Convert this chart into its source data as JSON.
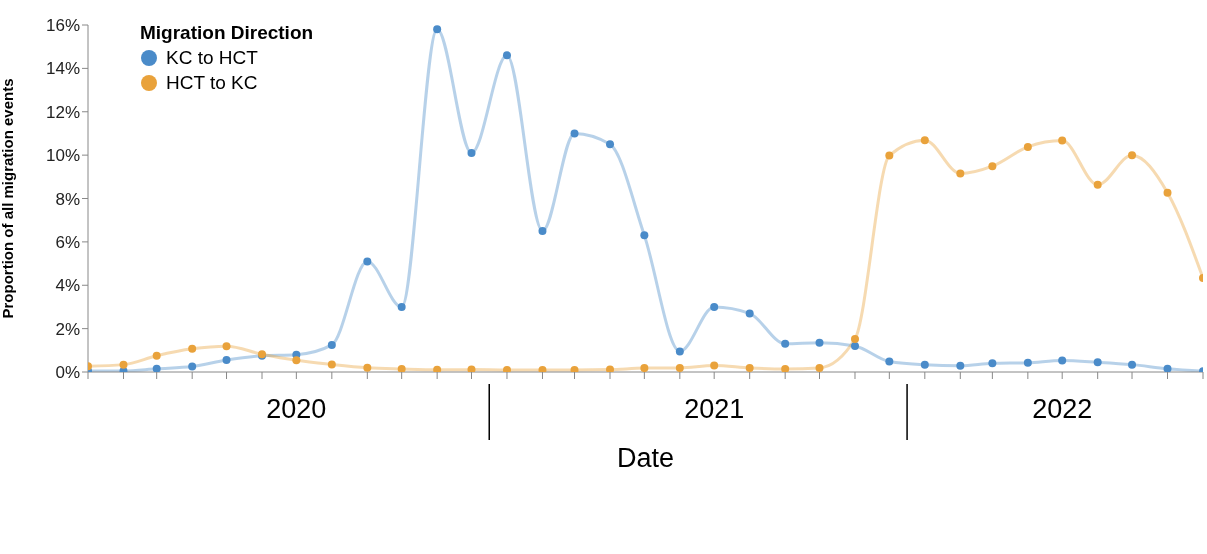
{
  "chart_data": {
    "type": "line",
    "xlabel": "Date",
    "ylabel": "Proportion of all migration events",
    "legend_title": "Migration Direction",
    "legend": "top left",
    "marker": "circle",
    "grid": false,
    "x": [
      "2020-01",
      "2020-02",
      "2020-03",
      "2020-04",
      "2020-05",
      "2020-06",
      "2020-07",
      "2020-08",
      "2020-09",
      "2020-10",
      "2020-11",
      "2020-12",
      "2021-01",
      "2021-02",
      "2021-03",
      "2021-04",
      "2021-05",
      "2021-06",
      "2021-07",
      "2021-08",
      "2021-09",
      "2021-10",
      "2021-11",
      "2021-12",
      "2022-01",
      "2022-02",
      "2022-03",
      "2022-04",
      "2022-05",
      "2022-06",
      "2022-07",
      "2022-08",
      "2022-09"
    ],
    "series": [
      {
        "name": "KC to HCT",
        "color": "#4a8bc9",
        "values": [
          0.05,
          0.05,
          0.15,
          0.25,
          0.55,
          0.75,
          0.8,
          1.25,
          5.1,
          3.0,
          15.8,
          10.1,
          14.6,
          6.5,
          11.0,
          10.5,
          6.3,
          0.95,
          3.0,
          2.7,
          1.3,
          1.35,
          1.2,
          0.48,
          0.33,
          0.29,
          0.4,
          0.43,
          0.53,
          0.45,
          0.34,
          0.15,
          0.04
        ]
      },
      {
        "name": "HCT to KC",
        "color": "#e9a23b",
        "values": [
          0.27,
          0.34,
          0.75,
          1.07,
          1.19,
          0.82,
          0.54,
          0.35,
          0.2,
          0.14,
          0.1,
          0.11,
          0.09,
          0.09,
          0.09,
          0.11,
          0.18,
          0.19,
          0.3,
          0.19,
          0.14,
          0.19,
          1.52,
          9.98,
          10.69,
          9.15,
          9.49,
          10.38,
          10.67,
          8.63,
          10.0,
          8.27,
          4.33
        ]
      }
    ],
    "xlim": [
      "2020-01",
      "2022-09"
    ],
    "xticks": [
      {
        "value": "2020-01",
        "label": null
      },
      {
        "value": "2020-02",
        "label": null
      },
      {
        "value": "2020-03",
        "label": null
      },
      {
        "value": "2020-04",
        "label": null
      },
      {
        "value": "2020-05",
        "label": null
      },
      {
        "value": "2020-06",
        "label": null
      },
      {
        "value": "2020-07",
        "label": "2020"
      },
      {
        "value": "2020-08",
        "label": null
      },
      {
        "value": "2020-09",
        "label": null
      },
      {
        "value": "2020-10",
        "label": null
      },
      {
        "value": "2020-11",
        "label": null
      },
      {
        "value": "2020-12",
        "label": null
      },
      {
        "value": "2021-01",
        "label": null
      },
      {
        "value": "2021-02",
        "label": null
      },
      {
        "value": "2021-03",
        "label": null
      },
      {
        "value": "2021-04",
        "label": null
      },
      {
        "value": "2021-05",
        "label": null
      },
      {
        "value": "2021-06",
        "label": null
      },
      {
        "value": "2021-07",
        "label": "2021"
      },
      {
        "value": "2021-08",
        "label": null
      },
      {
        "value": "2021-09",
        "label": null
      },
      {
        "value": "2021-10",
        "label": null
      },
      {
        "value": "2021-11",
        "label": null
      },
      {
        "value": "2021-12",
        "label": null
      },
      {
        "value": "2022-01",
        "label": null
      },
      {
        "value": "2022-02",
        "label": null
      },
      {
        "value": "2022-03",
        "label": null
      },
      {
        "value": "2022-04",
        "label": null
      },
      {
        "value": "2022-05",
        "label": "2022"
      },
      {
        "value": "2022-06",
        "label": null
      },
      {
        "value": "2022-07",
        "label": null
      },
      {
        "value": "2022-08",
        "label": null
      },
      {
        "value": "2022-09",
        "label": null
      }
    ],
    "ylim": [
      0,
      16
    ],
    "yticks": [
      {
        "value": 0,
        "label": "0%"
      },
      {
        "value": 2,
        "label": "2%"
      },
      {
        "value": 4,
        "label": "4%"
      },
      {
        "value": 6,
        "label": "6%"
      },
      {
        "value": 8,
        "label": "8%"
      },
      {
        "value": 10,
        "label": "10%"
      },
      {
        "value": 12,
        "label": "12%"
      },
      {
        "value": 14,
        "label": "14%"
      },
      {
        "value": 16,
        "label": "16%"
      }
    ]
  }
}
